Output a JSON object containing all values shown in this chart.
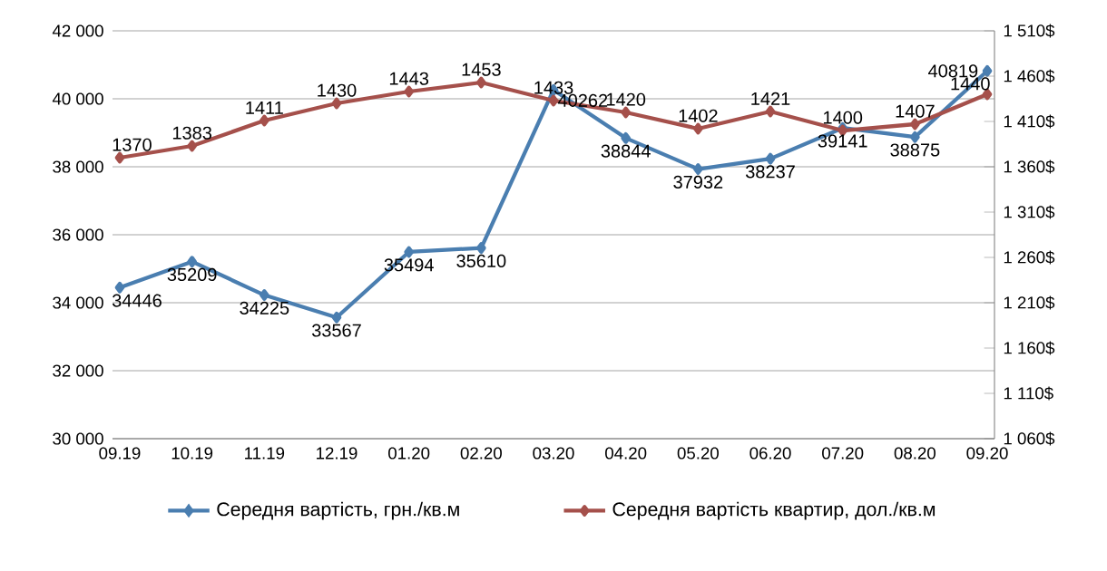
{
  "chart_data": {
    "type": "line",
    "categories": [
      "09.19",
      "10.19",
      "11.19",
      "12.19",
      "01.20",
      "02.20",
      "03.20",
      "04.20",
      "05.20",
      "06.20",
      "07.20",
      "08.20",
      "09.20"
    ],
    "series": [
      {
        "name": "Середня вартість, грн./кв.м",
        "color": "#4a7eb0",
        "values": [
          34446,
          35209,
          34225,
          33567,
          35494,
          35610,
          40262,
          38844,
          37932,
          38237,
          39141,
          38875,
          40819
        ]
      },
      {
        "name": "Середня вартість квартир, дол./кв.м",
        "color": "#a5504b",
        "axis": "y2",
        "values": [
          1370,
          1383,
          1411,
          1430,
          1443,
          1453,
          1433,
          1420,
          1402,
          1421,
          1400,
          1407,
          1440
        ]
      }
    ],
    "ylim": [
      30000,
      42000
    ],
    "yticks": [
      {
        "value": 30000,
        "label": "30 000"
      },
      {
        "value": 32000,
        "label": "32 000"
      },
      {
        "value": 34000,
        "label": "34 000"
      },
      {
        "value": 36000,
        "label": "36 000"
      },
      {
        "value": 38000,
        "label": "38 000"
      },
      {
        "value": 40000,
        "label": "40 000"
      },
      {
        "value": 42000,
        "label": "42 000"
      }
    ],
    "y2lim": [
      1060,
      1510
    ],
    "y2ticks": [
      {
        "value": 1060,
        "label": "1 060$"
      },
      {
        "value": 1110,
        "label": "1 110$"
      },
      {
        "value": 1160,
        "label": "1 160$"
      },
      {
        "value": 1210,
        "label": "1 210$"
      },
      {
        "value": 1260,
        "label": "1 260$"
      },
      {
        "value": 1310,
        "label": "1 310$"
      },
      {
        "value": 1360,
        "label": "1 360$"
      },
      {
        "value": 1410,
        "label": "1 410$"
      },
      {
        "value": 1460,
        "label": "1 460$"
      },
      {
        "value": 1510,
        "label": "1 510$"
      }
    ],
    "grid": "y",
    "legend": "bottom",
    "marker": "diamond",
    "line_style": "solid",
    "data_labels": true
  }
}
